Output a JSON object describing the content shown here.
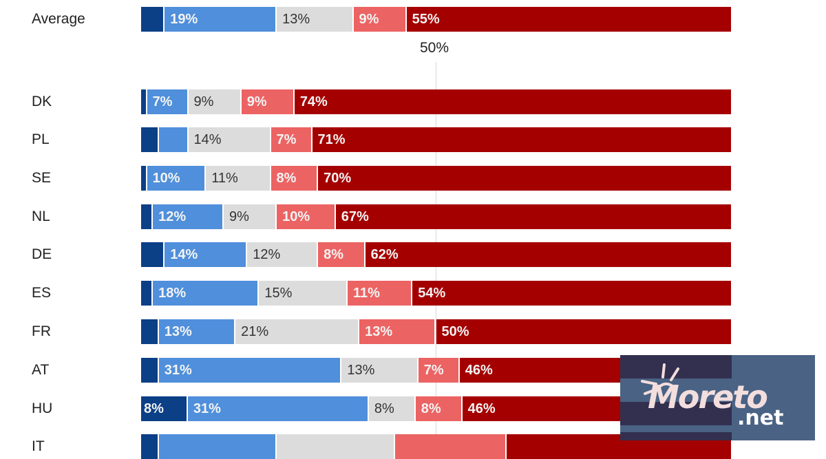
{
  "chart_data": {
    "type": "bar",
    "orientation": "horizontal",
    "stacked": true,
    "title": "",
    "xlabel": "",
    "ylabel": "",
    "xlim": [
      0,
      100
    ],
    "reference_line": {
      "value": 50,
      "label": "50%"
    },
    "grid": false,
    "legend": null,
    "categories": [
      "Average",
      "DK",
      "PL",
      "SE",
      "NL",
      "DE",
      "ES",
      "FR",
      "AT",
      "HU",
      "IT"
    ],
    "series": [
      {
        "name": "segment-1",
        "color": "#0b3f86",
        "values": [
          4,
          1,
          3,
          1,
          2,
          4,
          2,
          3,
          3,
          8,
          3
        ],
        "labels": [
          "",
          "",
          "",
          "",
          "",
          "",
          "",
          "",
          "",
          "8%",
          ""
        ]
      },
      {
        "name": "segment-2",
        "color": "#4f8fdb",
        "values": [
          19,
          7,
          5,
          10,
          12,
          14,
          18,
          13,
          31,
          31,
          20
        ],
        "labels": [
          "19%",
          "7%",
          "",
          "10%",
          "12%",
          "14%",
          "18%",
          "13%",
          "31%",
          "31%",
          ""
        ]
      },
      {
        "name": "segment-3",
        "color": "#dcdcdc",
        "values": [
          13,
          9,
          14,
          11,
          9,
          12,
          15,
          21,
          13,
          8,
          20
        ],
        "labels": [
          "13%",
          "9%",
          "14%",
          "11%",
          "9%",
          "12%",
          "15%",
          "21%",
          "13%",
          "8%",
          ""
        ]
      },
      {
        "name": "segment-4",
        "color": "#ec6363",
        "values": [
          9,
          9,
          7,
          8,
          10,
          8,
          11,
          13,
          7,
          8,
          19
        ],
        "labels": [
          "9%",
          "9%",
          "7%",
          "8%",
          "10%",
          "8%",
          "11%",
          "13%",
          "7%",
          "8%",
          ""
        ]
      },
      {
        "name": "segment-5",
        "color": "#a50000",
        "values": [
          55,
          74,
          71,
          70,
          67,
          62,
          54,
          50,
          46,
          46,
          38
        ],
        "labels": [
          "55%",
          "74%",
          "71%",
          "70%",
          "67%",
          "62%",
          "54%",
          "50%",
          "46%",
          "46%",
          ""
        ]
      }
    ]
  },
  "watermark": {
    "brand": "Moreto",
    "suffix": ".net"
  }
}
